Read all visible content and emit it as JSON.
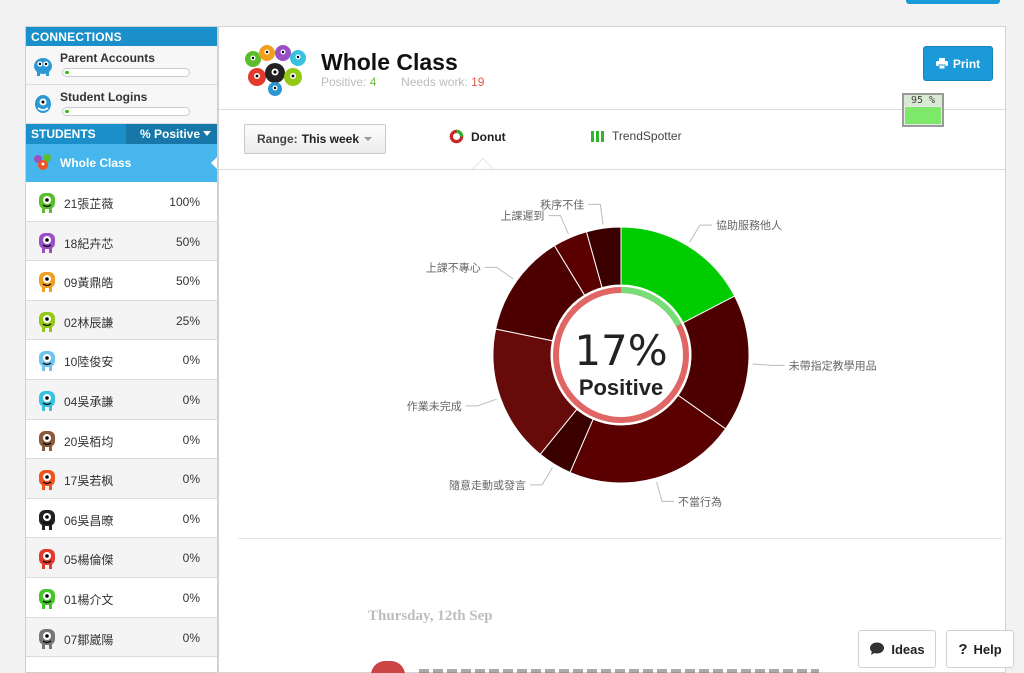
{
  "sidebar": {
    "connections_title": "CONNECTIONS",
    "connections": [
      {
        "label": "Parent Accounts",
        "progress": 0.03,
        "color": "#2d97d4"
      },
      {
        "label": "Student Logins",
        "progress": 0.03,
        "color": "#2d97d4"
      }
    ],
    "students_title": "STUDENTS",
    "sort_label": "% Positive",
    "whole_class_label": "Whole Class",
    "students": [
      {
        "name": "21張芷薇",
        "pct": "100%",
        "color": "#5bbd2b",
        "icon": "green-monster-icon"
      },
      {
        "name": "18紀卉芯",
        "pct": "50%",
        "color": "#9a4fc4",
        "icon": "purple-monster-icon"
      },
      {
        "name": "09黃鼎皓",
        "pct": "50%",
        "color": "#f0a020",
        "icon": "orange-monster-icon"
      },
      {
        "name": "02林辰謙",
        "pct": "25%",
        "color": "#93c914",
        "icon": "lime-monster-icon"
      },
      {
        "name": "10陸俊安",
        "pct": "0%",
        "color": "#6fc3ef",
        "icon": "lightblue-monster-icon"
      },
      {
        "name": "04吳承謙",
        "pct": "0%",
        "color": "#38c2e0",
        "icon": "cyan-monster-icon"
      },
      {
        "name": "20吳栢均",
        "pct": "0%",
        "color": "#8a5a3a",
        "icon": "brown-monster-icon"
      },
      {
        "name": "17吳若枫",
        "pct": "0%",
        "color": "#f0531f",
        "icon": "red-monster-icon"
      },
      {
        "name": "06吳昌暸",
        "pct": "0%",
        "color": "#222222",
        "icon": "black-monster-icon"
      },
      {
        "name": "05楊倫傑",
        "pct": "0%",
        "color": "#e23a2d",
        "icon": "red-monster-icon"
      },
      {
        "name": "01楊介文",
        "pct": "0%",
        "color": "#45c42c",
        "icon": "green-monster-icon"
      },
      {
        "name": "07鄒崴陽",
        "pct": "0%",
        "color": "#777777",
        "icon": "grey-monster-icon"
      }
    ]
  },
  "header": {
    "title": "Whole Class",
    "positive_label": "Positive:",
    "positive_value": "4",
    "needs_work_label": "Needs work:",
    "needs_work_value": "19",
    "print_label": "Print"
  },
  "battery": {
    "text": "95 %",
    "level": 0.95
  },
  "toolbar": {
    "range_label": "Range:",
    "range_value": "This week",
    "tabs": [
      {
        "label": "Donut",
        "active": true
      },
      {
        "label": "TrendSpotter",
        "active": false
      }
    ]
  },
  "chart_data": {
    "type": "pie",
    "center_value": "17%",
    "center_label": "Positive",
    "colors": {
      "positive": "#00cc00",
      "needs_work": [
        "#4d0000",
        "#5a0000",
        "#3a0000",
        "#660a0a"
      ]
    },
    "slices": [
      {
        "label": "協助服務他人",
        "value": 4,
        "kind": "positive"
      },
      {
        "label": "未帶指定教學用品",
        "value": 4,
        "kind": "needs_work"
      },
      {
        "label": "不當行為",
        "value": 5,
        "kind": "needs_work"
      },
      {
        "label": "隨意走動或發言",
        "value": 1,
        "kind": "needs_work"
      },
      {
        "label": "作業未完成",
        "value": 4,
        "kind": "needs_work"
      },
      {
        "label": "上課不專心",
        "value": 3,
        "kind": "needs_work"
      },
      {
        "label": "上課遲到",
        "value": 1,
        "kind": "needs_work"
      },
      {
        "label": "秩序不佳",
        "value": 1,
        "kind": "needs_work"
      }
    ]
  },
  "feed": {
    "date": "Thursday, 12th Sep"
  },
  "footer": {
    "ideas_label": "Ideas",
    "help_label": "Help"
  }
}
